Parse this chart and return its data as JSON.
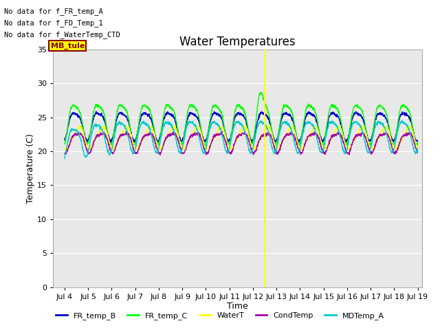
{
  "title": "Water Temperatures",
  "xlabel": "Time",
  "ylabel": "Temperature (C)",
  "ylim": [
    0,
    35
  ],
  "yticks": [
    0,
    5,
    10,
    15,
    20,
    25,
    30,
    35
  ],
  "xlim_days": [
    3.5,
    19.2
  ],
  "xtick_days": [
    4,
    5,
    6,
    7,
    8,
    9,
    10,
    11,
    12,
    13,
    14,
    15,
    16,
    17,
    18,
    19
  ],
  "xtick_labels": [
    "Jul 4",
    "Jul 5",
    "Jul 6",
    "Jul 7",
    "Jul 8",
    "Jul 9",
    "Jul 10",
    "Jul 11",
    "Jul 12",
    "Jul 13",
    "Jul 14",
    "Jul 15",
    "Jul 16",
    "Jul 17",
    "Jul 18",
    "Jul 19"
  ],
  "vertical_line_day": 12.5,
  "vertical_line_color": "yellow",
  "no_data_texts": [
    "No data for f_FR_temp_A",
    "No data for f_FD_Temp_1",
    "No data for f_WaterTemp_CTD"
  ],
  "legend_entries": [
    "FR_temp_B",
    "FR_temp_C",
    "WaterT",
    "CondTemp",
    "MDTemp_A"
  ],
  "legend_colors": [
    "#0000cc",
    "#00ff00",
    "#ffff00",
    "#aa00aa",
    "#00cccc"
  ],
  "line_colors": {
    "FR_temp_B": "#0000cc",
    "FR_temp_C": "#00ff00",
    "WaterT": "#ffff00",
    "CondTemp": "#aa00aa",
    "MDTemp_A": "#00cccc"
  },
  "fig_bg_color": "#ffffff",
  "plot_bg_color": "#e8e8e8",
  "grid_color": "#ffffff",
  "title_fontsize": 12,
  "axis_label_fontsize": 9,
  "tick_fontsize": 8
}
